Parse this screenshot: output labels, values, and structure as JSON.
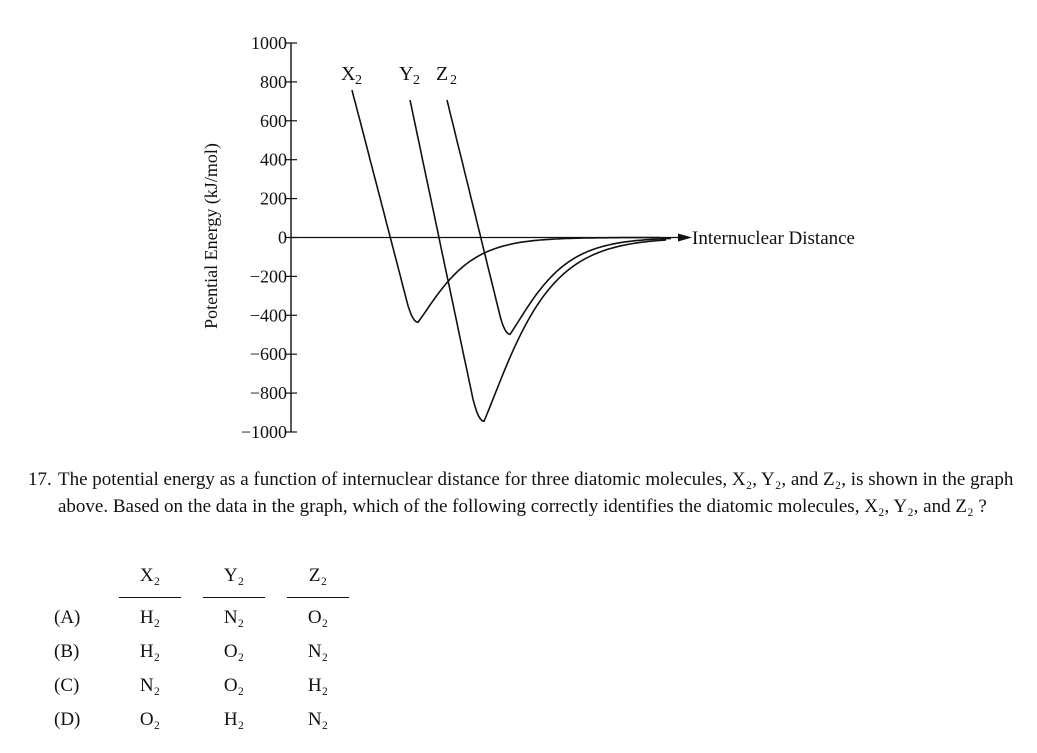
{
  "chart_data": {
    "type": "line",
    "ylabel": "Potential Energy (kJ/mol)",
    "xlabel": "Internuclear Distance",
    "yticks": [
      "1000",
      "800",
      "600",
      "400",
      "200",
      "0",
      "−200",
      "−400",
      "−600",
      "−800",
      "−1000"
    ],
    "ylim": [
      -1000,
      1000
    ],
    "series": [
      {
        "name": "X",
        "sub": "2",
        "well_depth": -436,
        "color": "#111111"
      },
      {
        "name": "Y",
        "sub": "2",
        "well_depth": -945,
        "color": "#111111"
      },
      {
        "name": "Z",
        "sub": "2",
        "well_depth": -498,
        "color": "#111111"
      }
    ]
  },
  "question": {
    "number": "17.",
    "text": "The potential energy as a function of internuclear distance for three diatomic molecules, X₂, Y₂, and Z₂, is shown in the graph above. Based on the data in the graph, which of the following correctly identifies the diatomic molecules, X₂, Y₂, and Z₂ ?"
  },
  "answers": {
    "headers": [
      "X₂",
      "Y₂",
      "Z₂"
    ],
    "rows": [
      {
        "label": "(A)",
        "cells": [
          "H₂",
          "N₂",
          "O₂"
        ]
      },
      {
        "label": "(B)",
        "cells": [
          "H₂",
          "O₂",
          "N₂"
        ]
      },
      {
        "label": "(C)",
        "cells": [
          "N₂",
          "O₂",
          "H₂"
        ]
      },
      {
        "label": "(D)",
        "cells": [
          "O₂",
          "H₂",
          "N₂"
        ]
      }
    ]
  }
}
